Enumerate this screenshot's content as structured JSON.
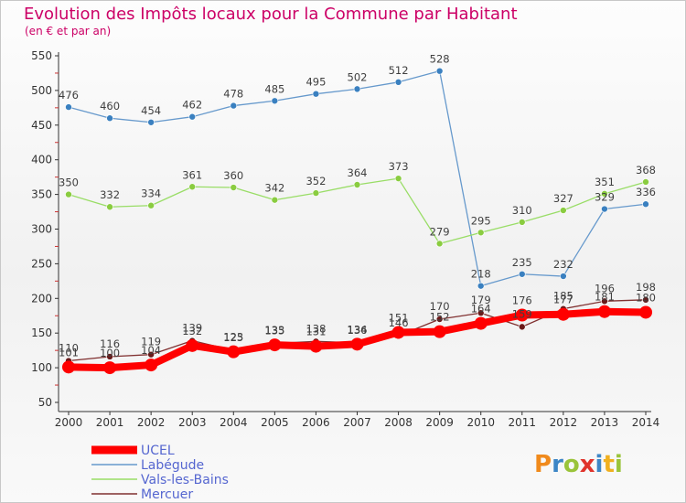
{
  "chart_data": {
    "type": "line",
    "title": "Evolution des Impôts locaux pour la Commune par Habitant",
    "subtitle": "(en € et par an)",
    "xlabel": "",
    "ylabel": "",
    "ylim": [
      50,
      550
    ],
    "yticks": [
      50,
      100,
      150,
      200,
      250,
      300,
      350,
      400,
      450,
      500,
      550
    ],
    "categories": [
      "2000",
      "2001",
      "2002",
      "2003",
      "2004",
      "2005",
      "2006",
      "2007",
      "2008",
      "2009",
      "2010",
      "2011",
      "2012",
      "2013",
      "2014"
    ],
    "grid": false,
    "legend_position": "bottom-left",
    "series": [
      {
        "name": "UCEL",
        "color": "#ff0000",
        "values": [
          101,
          100,
          104,
          132,
          123,
          133,
          131,
          134,
          151,
          152,
          164,
          176,
          177,
          181,
          180
        ]
      },
      {
        "name": "Labégude",
        "color": "#6699cc",
        "values": [
          476,
          460,
          454,
          462,
          478,
          485,
          495,
          502,
          512,
          528,
          218,
          235,
          232,
          329,
          336
        ]
      },
      {
        "name": "Vals-les-Bains",
        "color": "#99dd66",
        "values": [
          350,
          332,
          334,
          361,
          360,
          342,
          352,
          364,
          373,
          279,
          295,
          310,
          327,
          351,
          368
        ]
      },
      {
        "name": "Mercuer",
        "color": "#803030",
        "values": [
          110,
          116,
          119,
          139,
          125,
          135,
          138,
          136,
          146,
          170,
          179,
          159,
          185,
          196,
          198
        ]
      }
    ]
  },
  "logo": {
    "letters": [
      {
        "ch": "P",
        "color": "#f08a1c"
      },
      {
        "ch": "r",
        "color": "#3d86c6"
      },
      {
        "ch": "o",
        "color": "#9ac43a"
      },
      {
        "ch": "x",
        "color": "#e0342c"
      },
      {
        "ch": "i",
        "color": "#3d86c6"
      },
      {
        "ch": "t",
        "color": "#f0b020"
      },
      {
        "ch": "i",
        "color": "#9ac43a"
      }
    ]
  }
}
